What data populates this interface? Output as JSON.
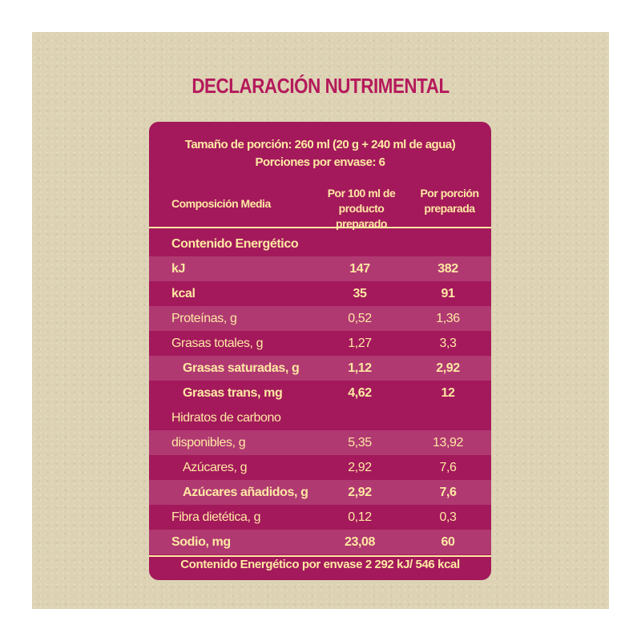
{
  "title": "DECLARACIÓN NUTRIMENTAL",
  "colors": {
    "accent": "#a3195b",
    "title": "#b5195b",
    "text": "#ffe8a3",
    "background": "#ddd3b4"
  },
  "header": {
    "serving_size": "Tamaño de porción: 260 ml (20 g + 240 ml de agua)",
    "servings_per_pack": "Porciones por envase: 6",
    "col_label": "Composición Media",
    "col1_line1": "Por 100 ml de",
    "col1_line2": "producto preparado",
    "col2_line1": "Por porción",
    "col2_line2": "preparada"
  },
  "section_label": "Contenido Energético",
  "rows": [
    {
      "label": "kJ",
      "v1": "147",
      "v2": "382"
    },
    {
      "label": "kcal",
      "v1": "35",
      "v2": "91"
    },
    {
      "label": "Proteínas, g",
      "v1": "0,52",
      "v2": "1,36"
    },
    {
      "label": "Grasas totales, g",
      "v1": "1,27",
      "v2": "3,3"
    },
    {
      "label": "Grasas saturadas, g",
      "v1": "1,12",
      "v2": "2,92"
    },
    {
      "label": "Grasas trans, mg",
      "v1": "4,62",
      "v2": "12"
    },
    {
      "label": "Hidratos de carbono",
      "v1": "",
      "v2": ""
    },
    {
      "label": "disponibles, g",
      "v1": "5,35",
      "v2": "13,92"
    },
    {
      "label": "Azúcares, g",
      "v1": "2,92",
      "v2": "7,6"
    },
    {
      "label": "Azúcares añadidos, g",
      "v1": "2,92",
      "v2": "7,6"
    },
    {
      "label": "Fibra dietética, g",
      "v1": "0,12",
      "v2": "0,3"
    },
    {
      "label": "Sodio, mg",
      "v1": "23,08",
      "v2": "60"
    }
  ],
  "footer": "Contenido Energético por envase 2 292 kJ/ 546 kcal"
}
